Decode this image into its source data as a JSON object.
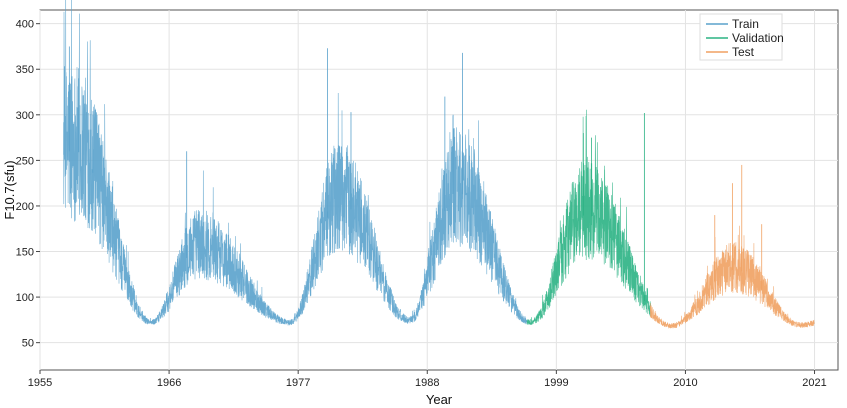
{
  "chart_data": {
    "type": "line",
    "title": "",
    "xlabel": "Year",
    "ylabel": "F10.7(sfu)",
    "xlim": [
      1955,
      2023
    ],
    "ylim": [
      20,
      415
    ],
    "x_ticks": [
      1955,
      1966,
      1977,
      1988,
      1999,
      2010,
      2021
    ],
    "y_ticks": [
      50,
      100,
      150,
      200,
      250,
      300,
      350,
      400
    ],
    "grid": true,
    "legend_position": "top-right",
    "series": [
      {
        "name": "Train",
        "color": "#5aa2cc",
        "x_range": [
          1957.0,
          1996.5
        ],
        "cycle_maxima": [
          [
            1958.0,
            260
          ],
          [
            1968.5,
            155
          ],
          [
            1980.5,
            205
          ],
          [
            1990.5,
            215
          ]
        ],
        "minima": [
          [
            1964.5,
            72
          ],
          [
            1976.3,
            72
          ],
          [
            1986.5,
            74
          ]
        ],
        "spikes": [
          [
            1957.5,
            375
          ],
          [
            1958.3,
            340
          ],
          [
            1959.5,
            300
          ],
          [
            1981.5,
            303
          ],
          [
            1979.5,
            373
          ],
          [
            1989.5,
            320
          ],
          [
            1991.0,
            368
          ],
          [
            1990.2,
            300
          ],
          [
            1967.5,
            260
          ]
        ]
      },
      {
        "name": "Validation",
        "color": "#2bb384",
        "x_range": [
          1996.5,
          2007.0
        ],
        "cycle_maxima": [
          [
            2001.5,
            190
          ]
        ],
        "minima": [
          [
            1996.8,
            72
          ]
        ],
        "spikes": [
          [
            2001.3,
            280
          ],
          [
            2002.0,
            275
          ],
          [
            2006.5,
            302
          ]
        ]
      },
      {
        "name": "Test",
        "color": "#f0a162",
        "x_range": [
          2007.0,
          2021.0
        ],
        "cycle_maxima": [
          [
            2014.2,
            130
          ]
        ],
        "minima": [
          [
            2008.8,
            68
          ],
          [
            2019.8,
            69
          ]
        ],
        "spikes": [
          [
            2014.8,
            245
          ],
          [
            2014.0,
            225
          ],
          [
            2012.5,
            190
          ],
          [
            2016.5,
            180
          ]
        ]
      }
    ]
  }
}
